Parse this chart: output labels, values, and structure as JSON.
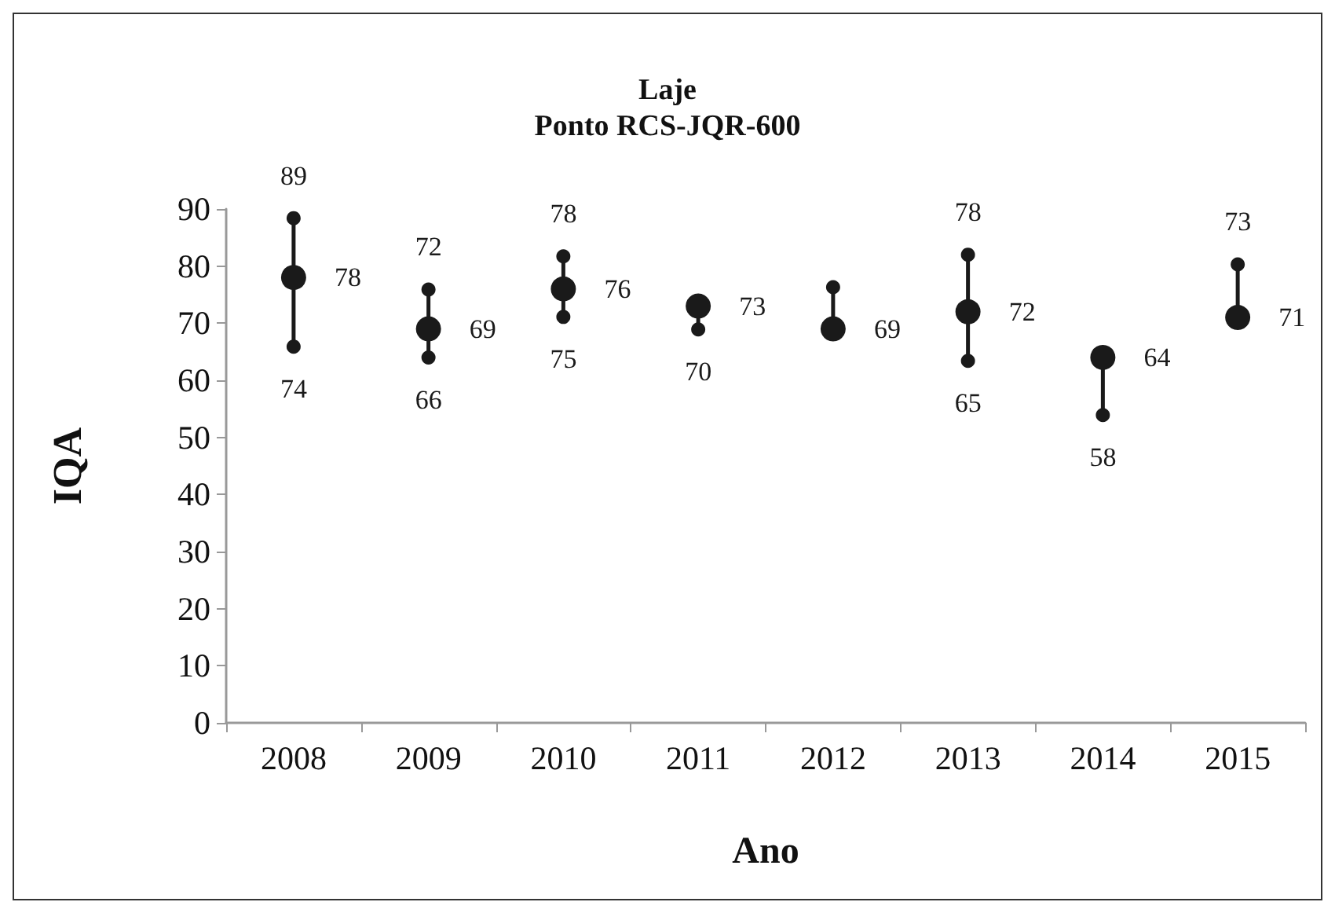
{
  "chart_data": {
    "type": "scatter",
    "title": "Laje",
    "subtitle": "Ponto RCS-JQR-600",
    "xlabel": "Ano",
    "ylabel": "IQA",
    "categories": [
      "2008",
      "2009",
      "2010",
      "2011",
      "2012",
      "2013",
      "2014",
      "2015"
    ],
    "series": [
      {
        "color": "#1a1a1a",
        "values": [
          78,
          69,
          76,
          73,
          69,
          72,
          64,
          71
        ],
        "value_labels": [
          "78",
          "69",
          "76",
          "73",
          "69",
          "72",
          "64",
          "71"
        ]
      },
      {
        "color": "#1a1a1a",
        "values": [
          88.4,
          75.9,
          81.7,
          null,
          76.3,
          82.0,
          null,
          80.3
        ]
      },
      {
        "color": "#1a1a1a",
        "values": [
          65.9,
          64.0,
          71.1,
          68.9,
          null,
          63.4,
          53.9,
          null
        ]
      }
    ],
    "annotations": [
      {
        "text": "89",
        "x": "2008",
        "y": 88.4
      },
      {
        "text": "74",
        "x": "2008",
        "y": 65.9
      },
      {
        "text": "72",
        "x": "2009",
        "y": 75.9
      },
      {
        "text": "66",
        "x": "2009",
        "y": 64.0
      },
      {
        "text": "78",
        "x": "2010",
        "y": 81.7
      },
      {
        "text": "75",
        "x": "2010",
        "y": 71.1
      },
      {
        "text": "70",
        "x": "2011",
        "y": 68.9
      },
      {
        "text": "78",
        "x": "2013",
        "y": 82.0
      },
      {
        "text": "65",
        "x": "2013",
        "y": 63.4
      },
      {
        "text": "58",
        "x": "2014",
        "y": 53.9
      },
      {
        "text": "73",
        "x": "2015",
        "y": 80.3
      }
    ],
    "ylim": [
      0,
      90
    ],
    "yticks": [
      0,
      10,
      20,
      30,
      40,
      50,
      60,
      70,
      80,
      90
    ],
    "grid": false,
    "marker": "circle"
  }
}
